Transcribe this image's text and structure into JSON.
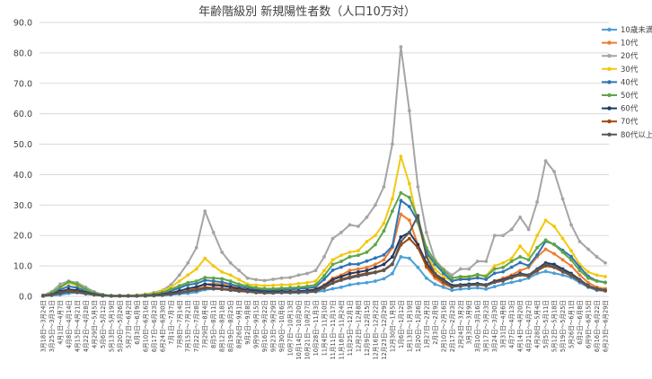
{
  "chart_data": {
    "type": "line",
    "title": "年齢階級別 新規陽性者数（人口10万対）",
    "xlabel": "",
    "ylabel": "",
    "ylim": [
      0,
      90
    ],
    "yticks": [
      "0.0",
      "10.0",
      "20.0",
      "30.0",
      "40.0",
      "50.0",
      "60.0",
      "70.0",
      "80.0",
      "90.0"
    ],
    "grid": "horizontal",
    "legend": "right",
    "x": [
      "3月18日～3月24日",
      "3月25日～3月31日",
      "4月1日～4月7日",
      "4月8日～4月14日",
      "4月15日～4月21日",
      "4月22日～4月28日",
      "4月29日～5月5日",
      "5月6日～5月12日",
      "5月13日～5月19日",
      "5月20日～5月26日",
      "5月27日～6月2日",
      "6月3日～6月9日",
      "6月10日～6月16日",
      "6月17日～6月23日",
      "6月24日～6月30日",
      "7月1日～7月7日",
      "7月8日～7月14日",
      "7月15日～7月21日",
      "7月22日～7月28日",
      "7月29日～8月4日",
      "8月5日～8月11日",
      "8月12日～8月18日",
      "8月19日～8月25日",
      "8月26日～9月1日",
      "9月2日～9月8日",
      "9月9日～9月15日",
      "9月16日～9月22日",
      "9月23日～9月29日",
      "9月30日～10月6日",
      "10月7日～10月13日",
      "10月14日～10月20日",
      "10月21日～10月27日",
      "10月28日～11月3日",
      "11月4日～11月10日",
      "11月11日～11月17日",
      "11月18日～11月24日",
      "11月25日～12月1日",
      "12月2日～12月8日",
      "12月9日～12月15日",
      "12月16日～12月22日",
      "12月23日～12月29日",
      "12月30日～1月5日",
      "1月6日～1月12日",
      "1月13日～1月19日",
      "1月20日～1月26日",
      "1月27日～2月2日",
      "2月3日～2月9日",
      "2月10日～2月16日",
      "2月17日～2月23日",
      "2月24日～3月2日",
      "3月3日～3月9日",
      "3月10日～3月16日",
      "3月17日～3月23日",
      "3月24日～3月30日",
      "3月31日～4月6日",
      "4月7日～4月13日",
      "4月14日～4月20日",
      "4月21日～4月27日",
      "4月28日～5月4日",
      "5月5日～5月11日",
      "5月12日～5月18日",
      "5月19日～5月25日",
      "5月26日～6月1日",
      "6月2日～6月8日",
      "6月9日～6月15日",
      "6月16日～6月22日",
      "6月23日～6月29日"
    ],
    "series": [
      {
        "name": "10歳未満",
        "color": "#4a9fd8",
        "values": [
          0.1,
          0.3,
          0.5,
          1.0,
          1.2,
          0.8,
          0.5,
          0.2,
          0.1,
          0.1,
          0.1,
          0.1,
          0.1,
          0.2,
          0.3,
          0.5,
          0.8,
          1.0,
          1.4,
          2.2,
          2.4,
          2.5,
          2.3,
          2.0,
          1.7,
          1.3,
          1.1,
          1.1,
          1.2,
          1.2,
          1.2,
          1.3,
          1.5,
          1.8,
          2.5,
          3.0,
          3.8,
          4.2,
          4.5,
          5.0,
          5.8,
          7.5,
          13.0,
          12.5,
          9.5,
          6.0,
          4.0,
          3.0,
          2.0,
          2.4,
          2.6,
          2.8,
          2.4,
          3.2,
          4.0,
          4.6,
          5.2,
          6.0,
          7.5,
          8.2,
          7.6,
          7.0,
          6.2,
          4.5,
          3.0,
          2.0,
          1.8
        ]
      },
      {
        "name": "10代",
        "color": "#ed7d31",
        "values": [
          0.2,
          0.5,
          1.0,
          1.6,
          2.0,
          1.5,
          0.8,
          0.3,
          0.1,
          0.1,
          0.1,
          0.1,
          0.2,
          0.3,
          0.4,
          0.7,
          1.2,
          1.8,
          2.8,
          4.0,
          4.2,
          4.0,
          3.4,
          2.8,
          2.2,
          1.8,
          1.5,
          1.5,
          1.6,
          1.6,
          1.7,
          1.9,
          2.4,
          3.8,
          6.0,
          7.0,
          8.5,
          9.0,
          9.5,
          10.5,
          12.0,
          16.0,
          27.0,
          25.0,
          17.0,
          9.5,
          6.0,
          4.0,
          3.0,
          3.8,
          4.0,
          4.2,
          3.8,
          5.0,
          6.0,
          7.0,
          8.5,
          9.5,
          13.0,
          15.5,
          14.0,
          12.0,
          10.0,
          7.0,
          4.5,
          3.0,
          2.5
        ]
      },
      {
        "name": "20代",
        "color": "#a5a5a5",
        "values": [
          0.4,
          1.5,
          4.0,
          5.0,
          4.5,
          3.0,
          1.5,
          0.6,
          0.3,
          0.3,
          0.3,
          0.4,
          0.7,
          1.2,
          2.0,
          3.8,
          7.0,
          11.0,
          16.0,
          28.0,
          21.0,
          14.5,
          11.0,
          8.5,
          6.0,
          5.5,
          5.2,
          5.6,
          6.0,
          6.2,
          7.0,
          7.5,
          8.5,
          13.0,
          19.0,
          21.0,
          23.5,
          23.0,
          26.0,
          30.0,
          36.0,
          50.0,
          82.0,
          61.0,
          36.0,
          21.0,
          12.0,
          9.0,
          7.0,
          9.0,
          9.0,
          11.5,
          11.5,
          20.0,
          20.0,
          22.0,
          26.0,
          22.0,
          31.0,
          44.5,
          41.0,
          32.0,
          23.5,
          18.0,
          15.5,
          13.0,
          11.0
        ]
      },
      {
        "name": "30代",
        "color": "#f2c80f",
        "values": [
          0.3,
          1.0,
          2.8,
          4.5,
          3.5,
          2.2,
          1.0,
          0.4,
          0.2,
          0.2,
          0.2,
          0.3,
          0.6,
          1.0,
          1.8,
          3.0,
          5.0,
          7.0,
          9.0,
          12.5,
          10.0,
          8.0,
          7.0,
          5.5,
          4.0,
          3.7,
          3.5,
          3.6,
          3.8,
          3.8,
          4.2,
          4.5,
          5.0,
          8.5,
          12.0,
          13.5,
          14.5,
          15.0,
          18.0,
          20.0,
          24.0,
          32.0,
          46.0,
          37.0,
          24.0,
          14.0,
          9.0,
          6.5,
          5.0,
          6.0,
          6.2,
          7.0,
          6.8,
          10.0,
          11.0,
          12.5,
          16.5,
          13.5,
          20.0,
          25.0,
          23.0,
          19.0,
          15.0,
          10.5,
          8.0,
          7.0,
          6.5
        ]
      },
      {
        "name": "40代",
        "color": "#2e75b6",
        "values": [
          0.3,
          0.9,
          2.2,
          3.3,
          2.8,
          1.8,
          0.9,
          0.4,
          0.2,
          0.2,
          0.2,
          0.2,
          0.4,
          0.7,
          1.1,
          1.8,
          2.8,
          3.8,
          4.2,
          5.3,
          5.0,
          4.7,
          4.0,
          3.3,
          2.8,
          2.3,
          2.0,
          2.0,
          2.2,
          2.3,
          2.5,
          2.7,
          3.1,
          5.6,
          8.6,
          9.6,
          10.6,
          10.6,
          11.6,
          12.6,
          13.6,
          16.5,
          31.5,
          29.5,
          24.6,
          14.6,
          10.6,
          7.6,
          5.1,
          5.6,
          5.6,
          6.1,
          5.6,
          7.6,
          8.1,
          9.6,
          11.1,
          10.1,
          13.6,
          18.1,
          17.1,
          15.1,
          13.1,
          9.6,
          6.6,
          5.1,
          4.6
        ]
      },
      {
        "name": "50代",
        "color": "#5ea548",
        "values": [
          0.3,
          1.1,
          3.0,
          4.8,
          4.0,
          2.3,
          1.1,
          0.5,
          0.2,
          0.2,
          0.2,
          0.3,
          0.5,
          0.8,
          1.3,
          2.3,
          3.5,
          4.5,
          5.0,
          6.2,
          6.0,
          5.8,
          5.0,
          4.0,
          3.4,
          2.8,
          2.5,
          2.5,
          2.7,
          2.8,
          3.0,
          3.3,
          3.8,
          6.8,
          10.5,
          11.5,
          13.0,
          13.5,
          14.5,
          17.0,
          21.5,
          28.0,
          34.0,
          32.5,
          25.5,
          16.0,
          11.5,
          8.5,
          6.0,
          6.5,
          6.5,
          7.2,
          6.5,
          9.0,
          9.5,
          11.5,
          13.0,
          12.0,
          16.0,
          18.5,
          17.0,
          14.5,
          12.0,
          8.5,
          6.0,
          5.0,
          4.5
        ]
      },
      {
        "name": "60代",
        "color": "#1f3864",
        "values": [
          0.2,
          0.6,
          1.6,
          2.3,
          2.0,
          1.3,
          0.7,
          0.3,
          0.1,
          0.1,
          0.1,
          0.1,
          0.2,
          0.4,
          0.7,
          1.1,
          1.8,
          2.6,
          3.1,
          4.0,
          3.7,
          3.5,
          3.0,
          2.5,
          2.1,
          1.8,
          1.5,
          1.5,
          1.6,
          1.6,
          1.7,
          1.9,
          2.2,
          3.5,
          5.5,
          6.5,
          7.5,
          8.0,
          8.5,
          9.5,
          10.5,
          13.0,
          19.5,
          21.0,
          17.0,
          11.0,
          7.5,
          5.5,
          3.6,
          3.8,
          4.0,
          4.2,
          3.8,
          5.0,
          5.5,
          6.5,
          7.5,
          7.0,
          9.0,
          11.0,
          10.5,
          9.0,
          7.5,
          5.5,
          3.5,
          2.5,
          2.0
        ]
      },
      {
        "name": "70代",
        "color": "#9e480e",
        "values": [
          0.1,
          0.5,
          1.2,
          1.8,
          1.5,
          1.0,
          0.5,
          0.2,
          0.1,
          0.1,
          0.1,
          0.1,
          0.2,
          0.3,
          0.5,
          0.8,
          1.2,
          1.8,
          2.3,
          3.0,
          2.8,
          2.6,
          2.3,
          2.0,
          1.7,
          1.4,
          1.2,
          1.2,
          1.3,
          1.3,
          1.4,
          1.5,
          1.7,
          3.0,
          4.6,
          5.6,
          6.4,
          7.0,
          7.6,
          8.0,
          8.7,
          10.7,
          16.9,
          19.0,
          16.0,
          10.0,
          6.7,
          4.7,
          3.1,
          3.4,
          3.6,
          3.8,
          3.5,
          4.6,
          5.1,
          6.1,
          7.0,
          6.6,
          8.4,
          10.0,
          9.5,
          8.1,
          6.8,
          5.0,
          3.2,
          2.3,
          1.8
        ]
      },
      {
        "name": "80代以上",
        "color": "#595959",
        "values": [
          0.1,
          0.4,
          1.0,
          1.5,
          1.3,
          0.9,
          0.5,
          0.2,
          0.1,
          0.1,
          0.1,
          0.1,
          0.2,
          0.3,
          0.4,
          0.7,
          1.1,
          1.6,
          2.0,
          2.6,
          2.5,
          2.3,
          2.0,
          1.7,
          1.5,
          1.2,
          1.1,
          1.1,
          1.2,
          1.2,
          1.3,
          1.4,
          1.6,
          2.8,
          4.3,
          5.3,
          6.0,
          6.6,
          7.2,
          7.8,
          8.5,
          10.5,
          18.0,
          21.0,
          26.5,
          13.0,
          7.5,
          5.0,
          3.2,
          3.5,
          3.6,
          3.9,
          3.6,
          4.7,
          5.2,
          6.2,
          7.2,
          6.8,
          8.8,
          10.5,
          9.8,
          8.4,
          7.0,
          5.2,
          3.3,
          2.4,
          1.9
        ]
      }
    ]
  }
}
